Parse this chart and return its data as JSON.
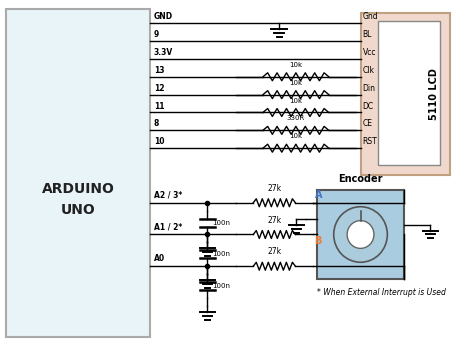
{
  "bg_color": "#ffffff",
  "arduino_fill": "#e8f4f8",
  "arduino_label": "ARDUINO\nUNO",
  "lcd_fill": "#f0d8cc",
  "lcd_label": "5110 LCD",
  "lcd_pins": [
    "Gnd",
    "BL",
    "Vcc",
    "Clk",
    "Din",
    "DC",
    "CE",
    "RST"
  ],
  "arduino_pins_top": [
    "GND",
    "9",
    "3.3V",
    "13",
    "12",
    "11",
    "8",
    "10"
  ],
  "arduino_resistors_top": [
    "",
    "",
    "",
    "10k",
    "10k",
    "10k",
    "330R",
    "10k"
  ],
  "encoder_fill": "#aacce0",
  "note": "* When External Interrupt is Used",
  "wire_color": "#000000",
  "A_label_color": "#4472c4",
  "B_label_color": "#ed7d31"
}
